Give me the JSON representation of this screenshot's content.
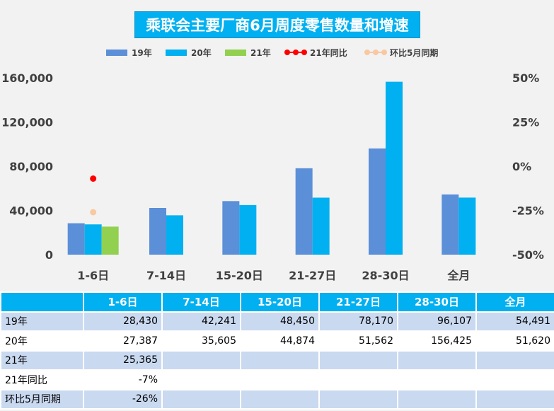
{
  "title": "乘联会主要厂商6月周度零售数量和增速",
  "colors": {
    "s19": "#5b8fd8",
    "s20": "#00b0f0",
    "s21": "#92d050",
    "yoy21": "#ff0000",
    "mom": "#f8c9a0",
    "header": "#00b0f0"
  },
  "legend": [
    {
      "label": "19年",
      "kind": "bar",
      "color": "#5b8fd8"
    },
    {
      "label": "20年",
      "kind": "bar",
      "color": "#00b0f0"
    },
    {
      "label": "21年",
      "kind": "bar",
      "color": "#92d050"
    },
    {
      "label": "21年同比",
      "kind": "line",
      "color": "#ff0000"
    },
    {
      "label": "环比5月同期",
      "kind": "line",
      "color": "#f8c9a0"
    }
  ],
  "chart_data": {
    "type": "bar",
    "title": "乘联会主要厂商6月周度零售数量和增速",
    "categories": [
      "1-6日",
      "7-14日",
      "15-20日",
      "21-27日",
      "28-30日",
      "全月"
    ],
    "series": [
      {
        "name": "19年",
        "values": [
          28430,
          42241,
          48450,
          78170,
          96107,
          54491
        ]
      },
      {
        "name": "20年",
        "values": [
          27387,
          35605,
          44874,
          51562,
          156425,
          51620
        ]
      },
      {
        "name": "21年",
        "values": [
          25365,
          null,
          null,
          null,
          null,
          null
        ]
      }
    ],
    "line_series": [
      {
        "name": "21年同比",
        "values": [
          -0.07,
          null,
          null,
          null,
          null,
          null
        ]
      },
      {
        "name": "环比5月同期",
        "values": [
          -0.26,
          null,
          null,
          null,
          null,
          null
        ]
      }
    ],
    "ylim": [
      0,
      160000
    ],
    "yticks": [
      "0",
      "40,000",
      "80,000",
      "120,000",
      "160,000"
    ],
    "y2lim": [
      -0.5,
      0.5
    ],
    "y2ticks": [
      "-50%",
      "-25%",
      "0%",
      "25%",
      "50%"
    ],
    "grid": false,
    "legend_position": "top"
  },
  "table": {
    "headers": [
      "",
      "1-6日",
      "7-14日",
      "15-20日",
      "21-27日",
      "28-30日",
      "全月"
    ],
    "rows": [
      {
        "label": "19年",
        "cells": [
          "28,430",
          "42,241",
          "48,450",
          "78,170",
          "96,107",
          "54,491"
        ]
      },
      {
        "label": "20年",
        "cells": [
          "27,387",
          "35,605",
          "44,874",
          "51,562",
          "156,425",
          "51,620"
        ]
      },
      {
        "label": "21年",
        "cells": [
          "25,365",
          "",
          "",
          "",
          "",
          ""
        ]
      },
      {
        "label": "21年同比",
        "cells": [
          "-7%",
          "",
          "",
          "",
          "",
          ""
        ]
      },
      {
        "label": "环比5月同期",
        "cells": [
          "-26%",
          "",
          "",
          "",
          "",
          ""
        ]
      }
    ]
  }
}
